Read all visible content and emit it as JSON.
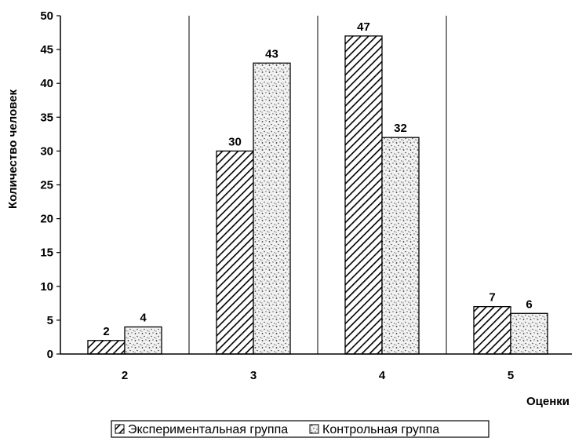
{
  "chart_data": {
    "type": "bar",
    "categories": [
      "2",
      "3",
      "4",
      "5"
    ],
    "series": [
      {
        "name": "Экспериментальная группа",
        "values": [
          2,
          30,
          47,
          7
        ],
        "pattern": "diagonal-hatch",
        "color": "#000000"
      },
      {
        "name": "Контрольная группа",
        "values": [
          4,
          43,
          32,
          6
        ],
        "pattern": "stipple",
        "color": "#000000"
      }
    ],
    "xlabel": "Оценки",
    "ylabel": "Количество человек",
    "ylim": [
      0,
      50
    ],
    "yticks": [
      0,
      5,
      10,
      15,
      20,
      25,
      30,
      35,
      40,
      45,
      50
    ],
    "data_labels": true,
    "category_separators": true,
    "legend_position": "bottom-left"
  }
}
